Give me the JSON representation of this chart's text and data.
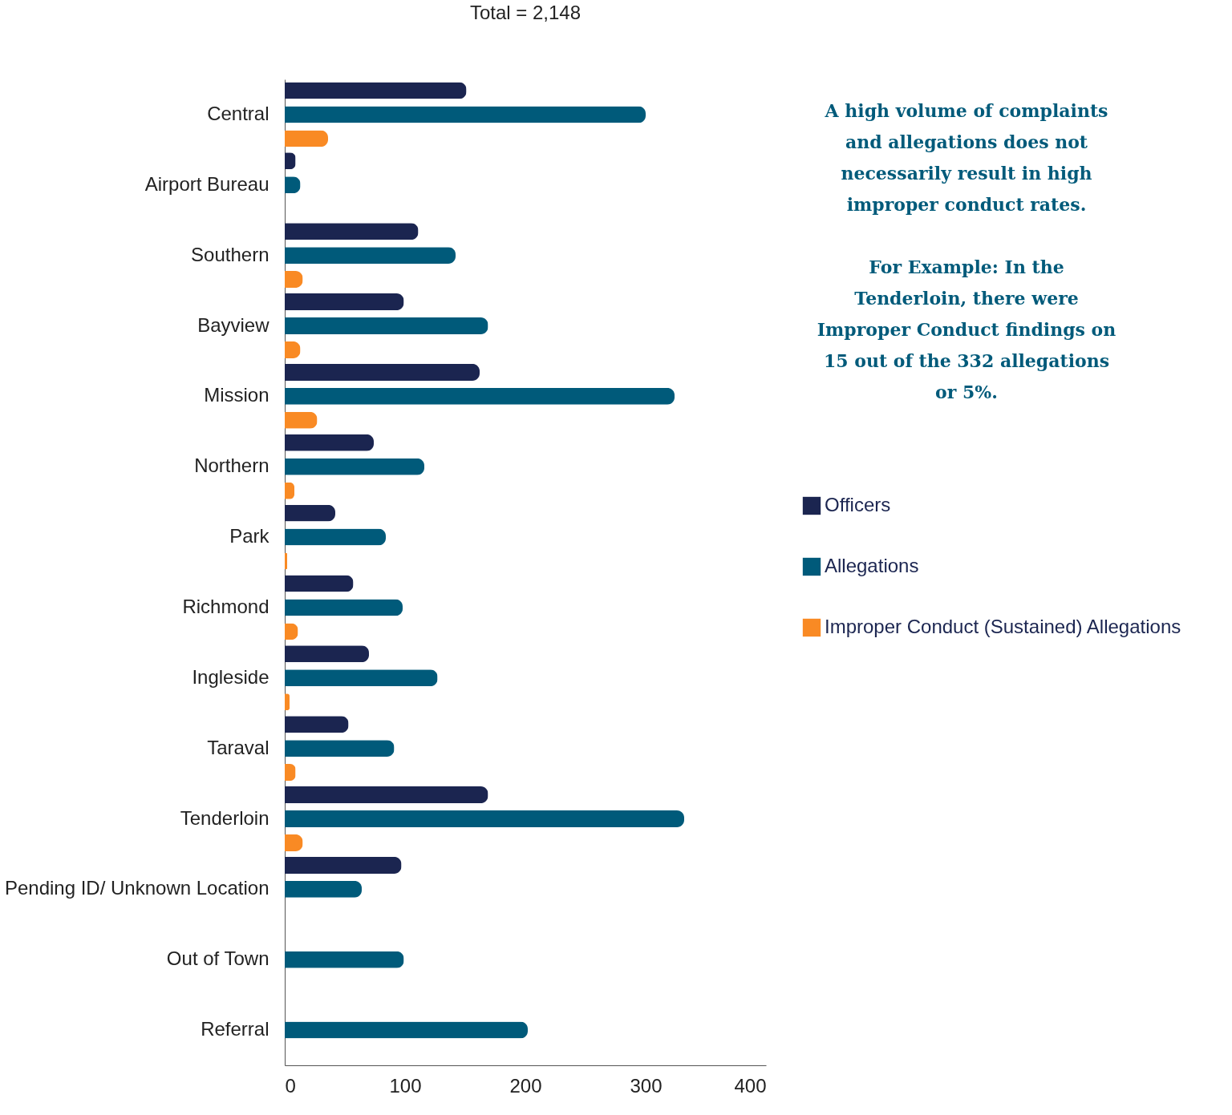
{
  "chart_data": {
    "type": "bar",
    "orientation": "horizontal",
    "title": "Total = 2,148",
    "categories": [
      "Central",
      "Airport Bureau",
      "Southern",
      "Bayview",
      "Mission",
      "Northern",
      "Park",
      "Richmond",
      "Ingleside",
      "Taraval",
      "Tenderloin",
      "Pending ID/ Unknown Location",
      "Out of Town",
      "Referral"
    ],
    "series": [
      {
        "name": "Officers",
        "color": "#1b2550",
        "values": [
          151,
          9,
          111,
          99,
          162,
          74,
          42,
          57,
          70,
          53,
          169,
          97,
          null,
          null
        ]
      },
      {
        "name": "Allegations",
        "color": "#005a7a",
        "values": [
          300,
          13,
          142,
          169,
          324,
          116,
          84,
          98,
          127,
          91,
          332,
          64,
          99,
          202
        ]
      },
      {
        "name": "Improper Conduct (Sustained) Allegations",
        "color": "#f98a24",
        "values": [
          36,
          null,
          15,
          13,
          27,
          8,
          2,
          11,
          4,
          9,
          15,
          null,
          null,
          null
        ]
      }
    ],
    "xlim": [
      0,
      400
    ],
    "xticks": [
      0,
      100,
      200,
      300,
      400
    ],
    "grid": false,
    "legend": "right",
    "annotations": [
      "A high volume of complaints and allegations does not necessarily result in high improper conduct rates.",
      "For Example: In the Tenderloin, there were Improper Conduct findings on 15 out of the 332 allegations or 5%."
    ]
  }
}
